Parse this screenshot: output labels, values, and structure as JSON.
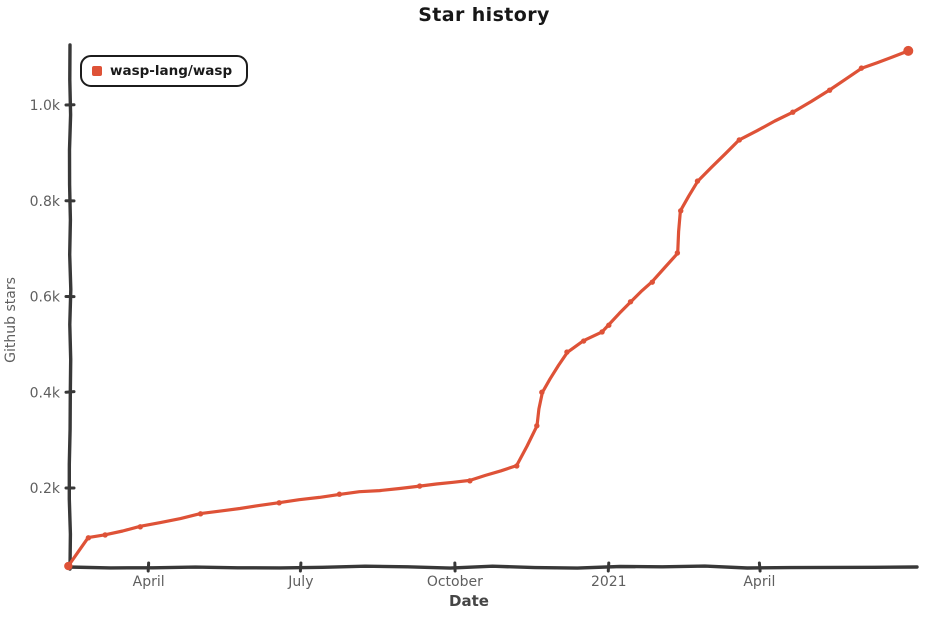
{
  "title": "Star history",
  "legend": {
    "label": "wasp-lang/wasp"
  },
  "axes": {
    "x_label": "Date",
    "y_label": "Github stars"
  },
  "colors": {
    "line": "#de5237",
    "axis": "#383838",
    "tick_text": "#5f5f5f",
    "axis_label_text": "#454545",
    "title_text": "#171717",
    "legend_border": "#1c1c1c",
    "background": "#ffffff"
  },
  "chart_data": {
    "type": "line",
    "title": "Star history",
    "xlabel": "Date",
    "ylabel": "Github stars",
    "legend": [
      "wasp-lang/wasp"
    ],
    "legend_position": "top-left",
    "grid": false,
    "style": "hand-drawn-xkcd",
    "x_domain": [
      "2020-02-14",
      "2021-07-06"
    ],
    "y_ticks": [
      {
        "label": "0.2k",
        "value": 200
      },
      {
        "label": "0.4k",
        "value": 400
      },
      {
        "label": "0.6k",
        "value": 600
      },
      {
        "label": "0.8k",
        "value": 800
      },
      {
        "label": "1.0k",
        "value": 1000
      }
    ],
    "x_ticks": [
      {
        "label": "April",
        "date": "2020-04-01"
      },
      {
        "label": "July",
        "date": "2020-07-01"
      },
      {
        "label": "October",
        "date": "2020-10-01"
      },
      {
        "label": "2021",
        "date": "2021-01-01"
      },
      {
        "label": "April",
        "date": "2021-04-01"
      }
    ],
    "series": [
      {
        "name": "wasp-lang/wasp",
        "color": "#de5237",
        "points": [
          {
            "date": "2020-02-13",
            "stars": 37
          },
          {
            "date": "2020-02-25",
            "stars": 96
          },
          {
            "date": "2020-03-06",
            "stars": 102
          },
          {
            "date": "2020-03-27",
            "stars": 119
          },
          {
            "date": "2020-05-02",
            "stars": 146
          },
          {
            "date": "2020-06-18",
            "stars": 169
          },
          {
            "date": "2020-07-24",
            "stars": 187
          },
          {
            "date": "2020-09-10",
            "stars": 204
          },
          {
            "date": "2020-10-10",
            "stars": 215
          },
          {
            "date": "2020-11-07",
            "stars": 246
          },
          {
            "date": "2020-11-19",
            "stars": 330
          },
          {
            "date": "2020-11-22",
            "stars": 400
          },
          {
            "date": "2020-12-07",
            "stars": 484
          },
          {
            "date": "2020-12-17",
            "stars": 507
          },
          {
            "date": "2020-12-28",
            "stars": 526
          },
          {
            "date": "2021-01-01",
            "stars": 540
          },
          {
            "date": "2021-01-14",
            "stars": 589
          },
          {
            "date": "2021-01-27",
            "stars": 630
          },
          {
            "date": "2021-02-11",
            "stars": 691
          },
          {
            "date": "2021-02-13",
            "stars": 779
          },
          {
            "date": "2021-02-23",
            "stars": 841
          },
          {
            "date": "2021-03-20",
            "stars": 927
          },
          {
            "date": "2021-04-21",
            "stars": 985
          },
          {
            "date": "2021-05-13",
            "stars": 1031
          },
          {
            "date": "2021-06-01",
            "stars": 1077
          },
          {
            "date": "2021-06-29",
            "stars": 1113
          }
        ]
      }
    ]
  }
}
